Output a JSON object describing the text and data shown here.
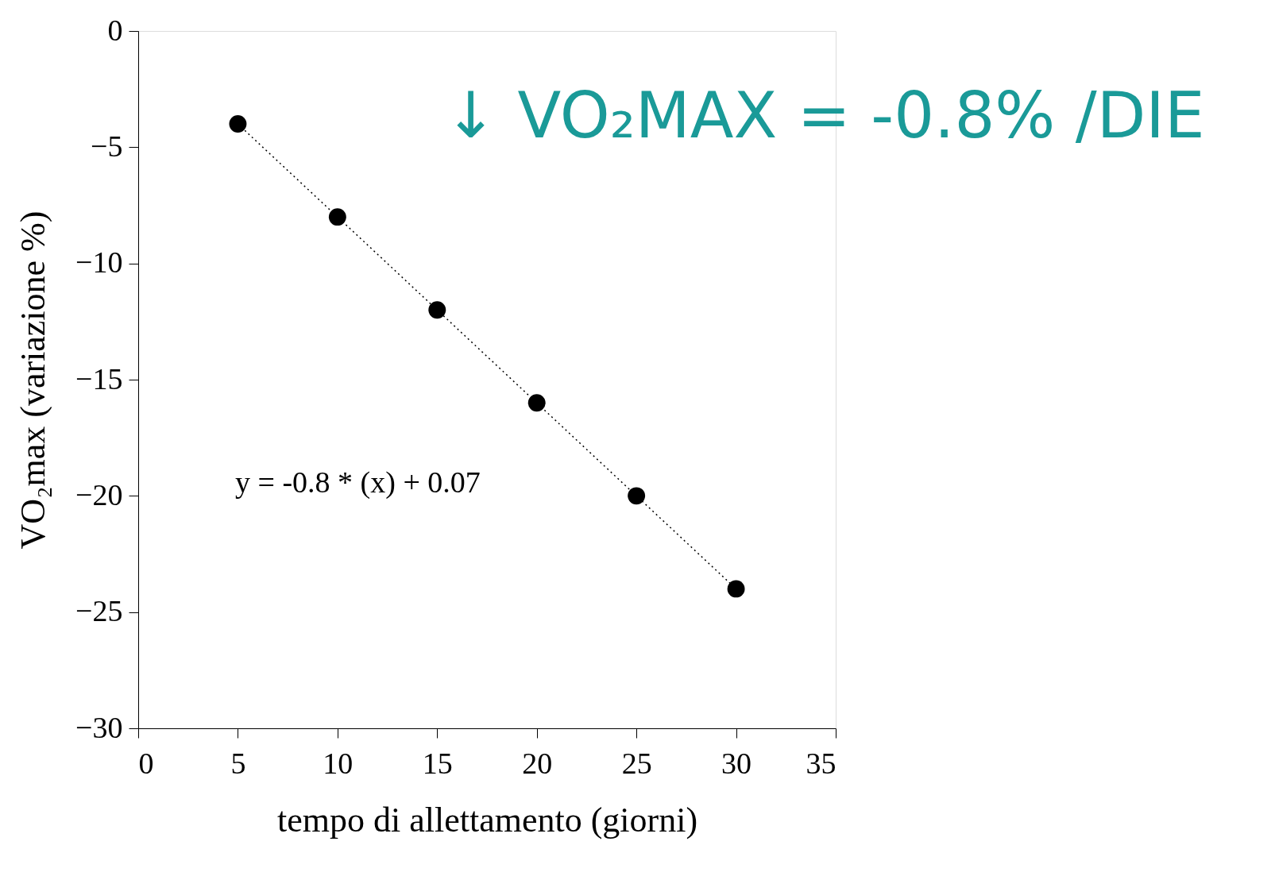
{
  "chart_data": {
    "type": "scatter",
    "title": "↓ VO₂MAX = -0.8% /DIE",
    "xlabel": "tempo di allettamento (giorni)",
    "ylabel": "VO₂max (variazione %)",
    "x": [
      5,
      10,
      15,
      20,
      25,
      30
    ],
    "series": [
      {
        "color": "#000000",
        "marker": "circle",
        "values": [
          -4,
          -8,
          -12,
          -16,
          -20,
          -24
        ]
      },
      {
        "type": "line",
        "color": "#000000",
        "line_style": "dotted",
        "x": [
          5,
          30
        ],
        "values": [
          -4,
          -24
        ]
      }
    ],
    "annotations": [
      "y = -0.8 * (x) + 0.07"
    ],
    "xlim": [
      0,
      35
    ],
    "xticks": [
      0,
      5,
      10,
      15,
      20,
      25,
      30,
      35
    ],
    "ylim": [
      -30,
      0
    ],
    "yticks": [
      -30,
      -25,
      -20,
      -15,
      -10,
      -5,
      0
    ]
  }
}
